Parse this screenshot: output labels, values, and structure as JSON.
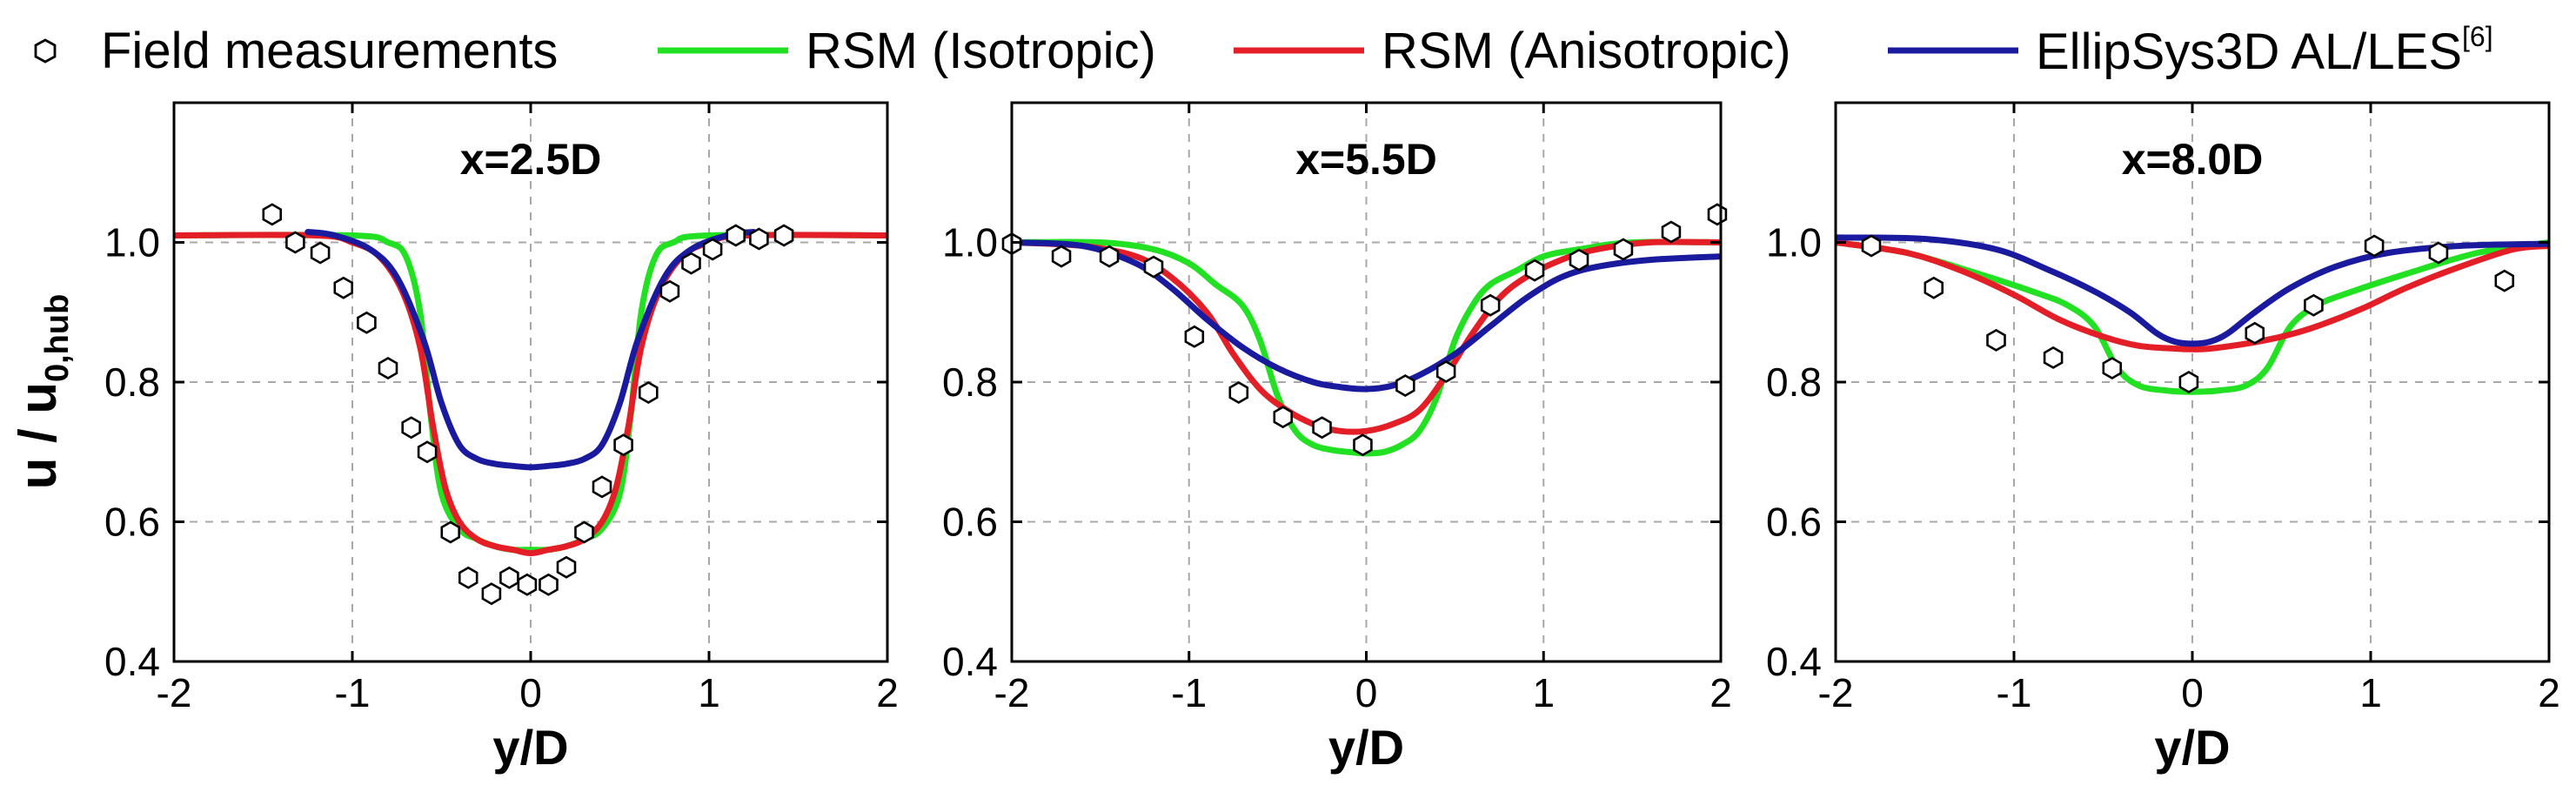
{
  "legend": {
    "field": "Field measurements",
    "iso": "RSM (Isotropic)",
    "aniso": "RSM (Anisotropic)",
    "les": "EllipSys3D AL/LES",
    "les_ref": "[6]"
  },
  "colors": {
    "iso": "#22e022",
    "aniso": "#e41e26",
    "les": "#1a1a9e",
    "marker": "#000000",
    "grid": "#a8a8a8"
  },
  "ylabel_main": "u / u",
  "ylabel_sub": "0,hub",
  "chart_data": [
    {
      "type": "line",
      "title": "x=2.5D",
      "xlabel": "y/D",
      "ylabel": "u / u0,hub",
      "xlim": [
        -2,
        2
      ],
      "ylim": [
        0.4,
        1.2
      ],
      "xticks": [
        -2,
        -1,
        0,
        1,
        2
      ],
      "yticks": [
        0.4,
        0.6,
        0.8,
        1.0
      ],
      "xtick_labels": [
        "-2",
        "-1",
        "0",
        "1",
        "2"
      ],
      "ytick_labels": [
        "0.4",
        "0.6",
        "0.8",
        "1.0"
      ],
      "series": [
        {
          "name": "RSM (Isotropic)",
          "key": "iso",
          "x": [
            -2,
            -1,
            -0.8,
            -0.7,
            -0.62,
            -0.56,
            -0.5,
            -0.4,
            -0.3,
            -0.2,
            -0.1,
            0,
            0.1,
            0.2,
            0.3,
            0.4,
            0.5,
            0.56,
            0.62,
            0.7,
            0.8,
            1,
            2
          ],
          "y": [
            1.01,
            1.01,
            1.0,
            0.98,
            0.9,
            0.75,
            0.64,
            0.59,
            0.575,
            0.565,
            0.56,
            0.56,
            0.56,
            0.565,
            0.575,
            0.59,
            0.64,
            0.75,
            0.9,
            0.98,
            1.0,
            1.01,
            1.01
          ]
        },
        {
          "name": "RSM (Anisotropic)",
          "key": "aniso",
          "x": [
            -2,
            -1.2,
            -1,
            -0.85,
            -0.72,
            -0.62,
            -0.55,
            -0.48,
            -0.4,
            -0.3,
            -0.2,
            -0.1,
            0,
            0.1,
            0.2,
            0.3,
            0.4,
            0.48,
            0.55,
            0.62,
            0.72,
            0.85,
            1,
            1.2,
            2
          ],
          "y": [
            1.01,
            1.01,
            1.0,
            0.98,
            0.93,
            0.85,
            0.74,
            0.65,
            0.6,
            0.575,
            0.565,
            0.56,
            0.555,
            0.56,
            0.565,
            0.575,
            0.6,
            0.65,
            0.74,
            0.85,
            0.93,
            0.98,
            1.0,
            1.01,
            1.01
          ]
        },
        {
          "name": "EllipSys3D AL/LES",
          "key": "les",
          "x": [
            -1.25,
            -1.1,
            -0.9,
            -0.75,
            -0.6,
            -0.5,
            -0.4,
            -0.3,
            -0.2,
            -0.1,
            0,
            0.1,
            0.2,
            0.3,
            0.4,
            0.5,
            0.6,
            0.75,
            0.9,
            1.1,
            1.25
          ],
          "y": [
            1.015,
            1.01,
            0.99,
            0.95,
            0.86,
            0.77,
            0.71,
            0.69,
            0.683,
            0.68,
            0.678,
            0.68,
            0.683,
            0.69,
            0.71,
            0.77,
            0.86,
            0.95,
            0.99,
            1.01,
            1.015
          ]
        }
      ],
      "measurements": {
        "x": [
          -1.45,
          -1.32,
          -1.18,
          -1.05,
          -0.92,
          -0.8,
          -0.67,
          -0.58,
          -0.45,
          -0.35,
          -0.22,
          -0.12,
          -0.02,
          0.1,
          0.2,
          0.3,
          0.4,
          0.52,
          0.66,
          0.78,
          0.9,
          1.02,
          1.15,
          1.28,
          1.42
        ],
        "y": [
          1.04,
          1.0,
          0.985,
          0.935,
          0.885,
          0.82,
          0.735,
          0.7,
          0.585,
          0.52,
          0.497,
          0.52,
          0.51,
          0.51,
          0.535,
          0.585,
          0.65,
          0.71,
          0.785,
          0.93,
          0.97,
          0.99,
          1.01,
          1.005,
          1.01
        ]
      }
    },
    {
      "type": "line",
      "title": "x=5.5D",
      "xlabel": "y/D",
      "ylabel": "u / u0,hub",
      "xlim": [
        -2,
        2
      ],
      "ylim": [
        0.4,
        1.2
      ],
      "xticks": [
        -2,
        -1,
        0,
        1,
        2
      ],
      "yticks": [
        0.4,
        0.6,
        0.8,
        1.0
      ],
      "xtick_labels": [
        "-2",
        "-1",
        "0",
        "1",
        "2"
      ],
      "ytick_labels": [
        "0.4",
        "0.6",
        "0.8",
        "1.0"
      ],
      "series": [
        {
          "name": "RSM (Isotropic)",
          "key": "iso",
          "x": [
            -2,
            -1.5,
            -1.2,
            -1,
            -0.85,
            -0.7,
            -0.6,
            -0.5,
            -0.4,
            -0.3,
            -0.2,
            -0.1,
            0,
            0.1,
            0.2,
            0.3,
            0.4,
            0.5,
            0.6,
            0.7,
            0.85,
            1,
            1.2,
            1.5,
            2
          ],
          "y": [
            1.0,
            1.0,
            0.99,
            0.97,
            0.94,
            0.91,
            0.86,
            0.78,
            0.73,
            0.71,
            0.703,
            0.7,
            0.698,
            0.7,
            0.71,
            0.73,
            0.78,
            0.86,
            0.91,
            0.94,
            0.96,
            0.98,
            0.99,
            1.0,
            1.0
          ]
        },
        {
          "name": "RSM (Anisotropic)",
          "key": "aniso",
          "x": [
            -2,
            -1.6,
            -1.3,
            -1.1,
            -0.9,
            -0.75,
            -0.6,
            -0.45,
            -0.3,
            -0.15,
            0,
            0.15,
            0.3,
            0.45,
            0.6,
            0.75,
            0.9,
            1.1,
            1.3,
            1.6,
            2
          ],
          "y": [
            1.0,
            0.995,
            0.98,
            0.95,
            0.9,
            0.84,
            0.79,
            0.76,
            0.74,
            0.73,
            0.73,
            0.74,
            0.76,
            0.81,
            0.87,
            0.92,
            0.95,
            0.975,
            0.99,
            1.0,
            1.0
          ]
        },
        {
          "name": "EllipSys3D AL/LES",
          "key": "les",
          "x": [
            -2,
            -1.6,
            -1.3,
            -1.1,
            -0.9,
            -0.7,
            -0.5,
            -0.3,
            -0.15,
            0,
            0.15,
            0.3,
            0.5,
            0.7,
            0.9,
            1.1,
            1.3,
            1.6,
            2
          ],
          "y": [
            1.0,
            0.995,
            0.97,
            0.935,
            0.89,
            0.85,
            0.82,
            0.8,
            0.793,
            0.79,
            0.795,
            0.81,
            0.84,
            0.88,
            0.92,
            0.95,
            0.965,
            0.975,
            0.98
          ]
        }
      ],
      "measurements": {
        "x": [
          -2,
          -1.72,
          -1.45,
          -1.2,
          -0.97,
          -0.72,
          -0.47,
          -0.25,
          -0.02,
          0.22,
          0.45,
          0.7,
          0.95,
          1.2,
          1.45,
          1.72,
          1.98
        ],
        "y": [
          0.998,
          0.98,
          0.98,
          0.965,
          0.865,
          0.785,
          0.75,
          0.735,
          0.71,
          0.795,
          0.815,
          0.91,
          0.96,
          0.975,
          0.99,
          1.015,
          1.04
        ]
      }
    },
    {
      "type": "line",
      "title": "x=8.0D",
      "xlabel": "y/D",
      "ylabel": "u / u0,hub",
      "xlim": [
        -2,
        2
      ],
      "ylim": [
        0.4,
        1.2
      ],
      "xticks": [
        -2,
        -1,
        0,
        1,
        2
      ],
      "yticks": [
        0.4,
        0.6,
        0.8,
        1.0
      ],
      "xtick_labels": [
        "-2",
        "-1",
        "0",
        "1",
        "2"
      ],
      "ytick_labels": [
        "0.4",
        "0.6",
        "0.8",
        "1.0"
      ],
      "series": [
        {
          "name": "RSM (Isotropic)",
          "key": "iso",
          "x": [
            -2,
            -1.6,
            -1.2,
            -0.9,
            -0.7,
            -0.55,
            -0.42,
            -0.3,
            -0.15,
            0,
            0.15,
            0.3,
            0.42,
            0.55,
            0.7,
            0.9,
            1.2,
            1.6,
            2
          ],
          "y": [
            1.0,
            0.985,
            0.955,
            0.93,
            0.91,
            0.88,
            0.82,
            0.795,
            0.788,
            0.786,
            0.788,
            0.795,
            0.82,
            0.88,
            0.91,
            0.93,
            0.955,
            0.985,
            1.0
          ]
        },
        {
          "name": "RSM (Anisotropic)",
          "key": "aniso",
          "x": [
            -2,
            -1.6,
            -1.3,
            -1,
            -0.75,
            -0.5,
            -0.3,
            -0.1,
            0,
            0.1,
            0.3,
            0.5,
            0.7,
            0.95,
            1.2,
            1.5,
            1.8,
            2
          ],
          "y": [
            1.0,
            0.985,
            0.96,
            0.925,
            0.89,
            0.865,
            0.852,
            0.848,
            0.847,
            0.848,
            0.855,
            0.865,
            0.88,
            0.905,
            0.935,
            0.965,
            0.99,
            0.995
          ]
        },
        {
          "name": "EllipSys3D AL/LES",
          "key": "les",
          "x": [
            -2,
            -1.5,
            -1.1,
            -0.8,
            -0.55,
            -0.35,
            -0.2,
            -0.1,
            0,
            0.1,
            0.2,
            0.35,
            0.55,
            0.8,
            1.1,
            1.5,
            2
          ],
          "y": [
            1.007,
            1.005,
            0.99,
            0.96,
            0.93,
            0.9,
            0.87,
            0.858,
            0.855,
            0.858,
            0.87,
            0.9,
            0.935,
            0.965,
            0.985,
            0.995,
            0.998
          ]
        }
      ],
      "measurements": {
        "x": [
          -1.8,
          -1.45,
          -1.1,
          -0.78,
          -0.45,
          -0.02,
          0.35,
          0.68,
          1.02,
          1.38,
          1.75
        ],
        "y": [
          0.995,
          0.935,
          0.86,
          0.835,
          0.82,
          0.8,
          0.87,
          0.91,
          0.995,
          0.985,
          0.945
        ]
      }
    }
  ]
}
